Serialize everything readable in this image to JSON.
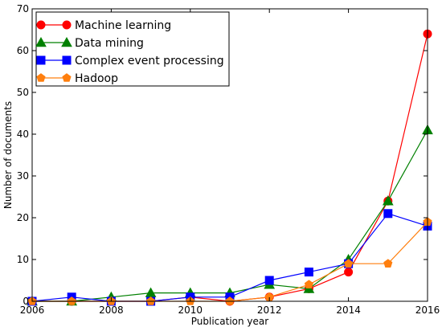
{
  "chart_data": {
    "type": "line",
    "xlabel": "Publication year",
    "ylabel": "Number of documents",
    "xlim": [
      2006,
      2016
    ],
    "ylim": [
      0,
      70
    ],
    "x_ticks": [
      "2006",
      "2008",
      "2010",
      "2012",
      "2014",
      "2016"
    ],
    "y_ticks": [
      "0",
      "10",
      "20",
      "30",
      "40",
      "50",
      "60",
      "70"
    ],
    "grid": false,
    "legend_position": "top-left",
    "series": [
      {
        "name": "Machine learning",
        "color": "#ff0000",
        "marker": "circle",
        "x": [
          2006,
          2007,
          2008,
          2009,
          2010,
          2011,
          2012,
          2013,
          2014,
          2015,
          2016
        ],
        "y": [
          0,
          0,
          0,
          0,
          1,
          0,
          1,
          3,
          7,
          24,
          64
        ]
      },
      {
        "name": "Data mining",
        "color": "#008000",
        "marker": "triangle",
        "x": [
          2006,
          2007,
          2008,
          2009,
          2010,
          2011,
          2012,
          2013,
          2014,
          2015,
          2016
        ],
        "y": [
          0,
          0,
          1,
          2,
          2,
          2,
          4,
          3,
          10,
          24,
          41
        ]
      },
      {
        "name": "Complex event processing",
        "color": "#0000ff",
        "marker": "square",
        "x": [
          2006,
          2007,
          2008,
          2009,
          2010,
          2011,
          2012,
          2013,
          2014,
          2015,
          2016
        ],
        "y": [
          0,
          1,
          0,
          0,
          1,
          1,
          5,
          7,
          9,
          21,
          18
        ]
      },
      {
        "name": "Hadoop",
        "color": "#ff7f0e",
        "marker": "pentagon",
        "x": [
          2006,
          2007,
          2008,
          2009,
          2010,
          2011,
          2012,
          2013,
          2014,
          2015,
          2016
        ],
        "y": [
          0,
          0,
          0,
          0,
          0,
          0,
          1,
          4,
          9,
          9,
          19
        ]
      }
    ]
  }
}
